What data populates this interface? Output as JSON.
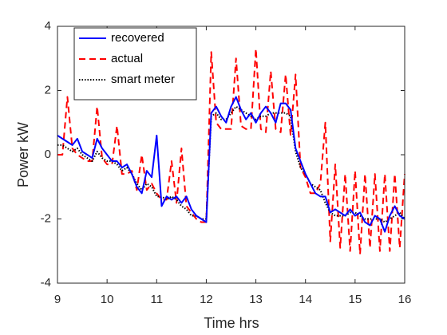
{
  "chart_data": {
    "type": "line",
    "xlabel": "Time hrs",
    "ylabel": "Power kW",
    "x": [
      9.0,
      9.1,
      9.2,
      9.3,
      9.4,
      9.5,
      9.6,
      9.7,
      9.8,
      9.9,
      10.0,
      10.1,
      10.2,
      10.3,
      10.4,
      10.5,
      10.6,
      10.7,
      10.8,
      10.9,
      11.0,
      11.1,
      11.2,
      11.3,
      11.4,
      11.5,
      11.6,
      11.7,
      11.8,
      11.9,
      12.0,
      12.1,
      12.2,
      12.3,
      12.4,
      12.5,
      12.6,
      12.7,
      12.8,
      12.9,
      13.0,
      13.1,
      13.2,
      13.3,
      13.4,
      13.5,
      13.6,
      13.7,
      13.8,
      13.9,
      14.0,
      14.1,
      14.2,
      14.3,
      14.4,
      14.5,
      14.6,
      14.7,
      14.8,
      14.9,
      15.0,
      15.1,
      15.2,
      15.3,
      15.4,
      15.5,
      15.6,
      15.7,
      15.8,
      15.9,
      16.0
    ],
    "series": [
      {
        "name": "recovered",
        "color": "#0000ff",
        "style": "solid",
        "values": [
          0.6,
          0.5,
          0.4,
          0.3,
          0.5,
          0.1,
          0.0,
          -0.1,
          0.5,
          0.2,
          0.0,
          -0.2,
          -0.2,
          -0.4,
          -0.3,
          -0.6,
          -1.0,
          -1.2,
          -0.5,
          -0.7,
          0.6,
          -1.6,
          -1.3,
          -1.4,
          -1.3,
          -1.5,
          -1.3,
          -1.7,
          -1.9,
          -2.0,
          -2.1,
          1.3,
          1.5,
          1.2,
          1.0,
          1.5,
          1.8,
          1.4,
          1.1,
          1.3,
          1.0,
          1.3,
          1.5,
          1.3,
          1.0,
          1.6,
          1.6,
          1.4,
          0.2,
          -0.2,
          -0.6,
          -0.9,
          -1.2,
          -1.3,
          -1.3,
          -1.8,
          -1.7,
          -1.8,
          -1.9,
          -1.7,
          -1.9,
          -1.8,
          -2.1,
          -2.2,
          -1.9,
          -2.0,
          -2.4,
          -1.9,
          -1.6,
          -1.9,
          -2.0
        ]
      },
      {
        "name": "actual",
        "color": "#ff0000",
        "style": "dashed",
        "values": [
          0.0,
          0.0,
          1.8,
          0.2,
          0.0,
          -0.1,
          -0.2,
          -0.2,
          1.5,
          -0.1,
          -0.3,
          -0.3,
          0.9,
          -0.6,
          -0.6,
          -0.5,
          -1.1,
          0.0,
          -1.1,
          -0.9,
          -1.2,
          -1.4,
          -1.4,
          -0.2,
          -1.5,
          0.2,
          -1.6,
          -1.8,
          -2.0,
          -2.1,
          -2.1,
          3.2,
          1.0,
          0.8,
          0.8,
          0.8,
          3.0,
          0.9,
          0.8,
          0.8,
          3.3,
          0.8,
          0.7,
          2.6,
          0.8,
          0.7,
          2.5,
          0.6,
          2.5,
          -0.4,
          -0.7,
          -1.2,
          -1.2,
          -0.9,
          1.0,
          -2.7,
          -0.3,
          -2.9,
          -0.6,
          -3.0,
          -0.5,
          -3.1,
          -0.6,
          -2.9,
          -0.6,
          -3.0,
          -0.6,
          -3.0,
          -0.6,
          -2.9,
          -0.6
        ]
      },
      {
        "name": "smart meter",
        "color": "#000000",
        "style": "dotted",
        "values": [
          0.3,
          0.3,
          0.2,
          0.1,
          0.2,
          0.0,
          -0.1,
          -0.2,
          0.1,
          -0.1,
          -0.2,
          -0.2,
          -0.3,
          -0.5,
          -0.4,
          -0.6,
          -0.9,
          -1.1,
          -0.9,
          -1.0,
          -1.3,
          -1.3,
          -1.4,
          -1.3,
          -1.4,
          -1.6,
          -1.7,
          -1.9,
          -1.9,
          -2.0,
          -2.0,
          1.2,
          1.3,
          1.1,
          1.1,
          1.3,
          1.5,
          1.4,
          1.3,
          1.2,
          1.1,
          1.2,
          1.2,
          1.3,
          1.3,
          1.3,
          1.3,
          1.2,
          0.1,
          -0.4,
          -0.6,
          -0.9,
          -1.0,
          -1.1,
          -1.5,
          -1.8,
          -1.9,
          -1.9,
          -1.9,
          -1.8,
          -1.8,
          -1.9,
          -2.0,
          -2.0,
          -2.0,
          -2.0,
          -2.1,
          -2.0,
          -1.9,
          -1.8,
          -2.0
        ]
      }
    ],
    "xlim": [
      9,
      16
    ],
    "xticks": [
      9,
      10,
      11,
      12,
      13,
      14,
      15,
      16
    ],
    "ylim": [
      -4,
      4
    ],
    "yticks": [
      -4,
      -2,
      0,
      2,
      4
    ],
    "grid": false,
    "legend": "northwest"
  }
}
